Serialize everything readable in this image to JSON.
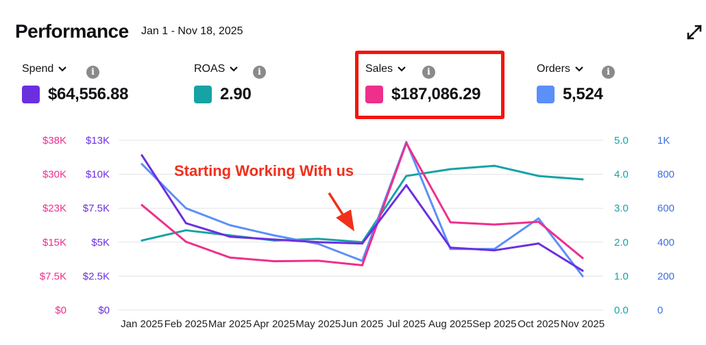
{
  "header": {
    "title": "Performance",
    "date_range": "Jan 1 - Nov 18, 2025"
  },
  "metrics": [
    {
      "label": "Spend",
      "value": "$64,556.88",
      "color": "#6b2fe0",
      "icon": "chevron-down-icon"
    },
    {
      "label": "ROAS",
      "value": "2.90",
      "color": "#17a2a4",
      "icon": "chevron-down-icon"
    },
    {
      "label": "Sales",
      "value": "$187,086.29",
      "color": "#ee2f8c",
      "icon": "chevron-down-icon"
    },
    {
      "label": "Orders",
      "value": "5,524",
      "color": "#5b8ff9",
      "icon": "chevron-down-icon"
    }
  ],
  "highlight_color": "#f5140c",
  "annotation": {
    "text": "Starting Working With us",
    "color": "#f0301c"
  },
  "chart_data": {
    "type": "line",
    "categories": [
      "Jan 2025",
      "Feb 2025",
      "Mar 2025",
      "Apr 2025",
      "May 2025",
      "Jun 2025",
      "Jul 2025",
      "Aug 2025",
      "Sep 2025",
      "Oct 2025",
      "Nov 2025"
    ],
    "axes": {
      "sales": {
        "ticks": [
          "$0",
          "$7.5K",
          "$15K",
          "$23K",
          "$30K",
          "$38K"
        ],
        "color": "#ee2f8c",
        "range": [
          0,
          37500
        ]
      },
      "spend": {
        "ticks": [
          "$0",
          "$2.5K",
          "$5K",
          "$7.5K",
          "$10K",
          "$13K"
        ],
        "color": "#6b2fe0",
        "range": [
          0,
          12500
        ]
      },
      "roas": {
        "ticks": [
          "0.0",
          "1.0",
          "2.0",
          "3.0",
          "4.0",
          "5.0"
        ],
        "color": "#17a2a4",
        "range": [
          0,
          5
        ]
      },
      "orders": {
        "ticks": [
          "0",
          "200",
          "400",
          "600",
          "800",
          "1K"
        ],
        "color": "#3d6fe0",
        "range": [
          0,
          1000
        ]
      }
    },
    "series": [
      {
        "key": "sales",
        "axis": "sales",
        "color": "#ee2f8c",
        "values": [
          23200,
          15100,
          11600,
          10800,
          10900,
          9900,
          36900,
          19400,
          18900,
          19500,
          11500
        ]
      },
      {
        "key": "spend",
        "axis": "spend",
        "color": "#6b2fe0",
        "values": [
          11400,
          6400,
          5400,
          5200,
          5000,
          4900,
          9200,
          4600,
          4400,
          4900,
          2900
        ]
      },
      {
        "key": "roas",
        "axis": "roas",
        "color": "#17a2a4",
        "values": [
          2.05,
          2.35,
          2.2,
          2.05,
          2.1,
          2.0,
          3.95,
          4.15,
          4.25,
          3.95,
          3.85
        ]
      },
      {
        "key": "orders",
        "axis": "orders",
        "color": "#5b8ff9",
        "values": [
          860,
          600,
          500,
          440,
          390,
          290,
          990,
          360,
          360,
          540,
          200
        ]
      }
    ],
    "grid": true,
    "legend": "top"
  }
}
